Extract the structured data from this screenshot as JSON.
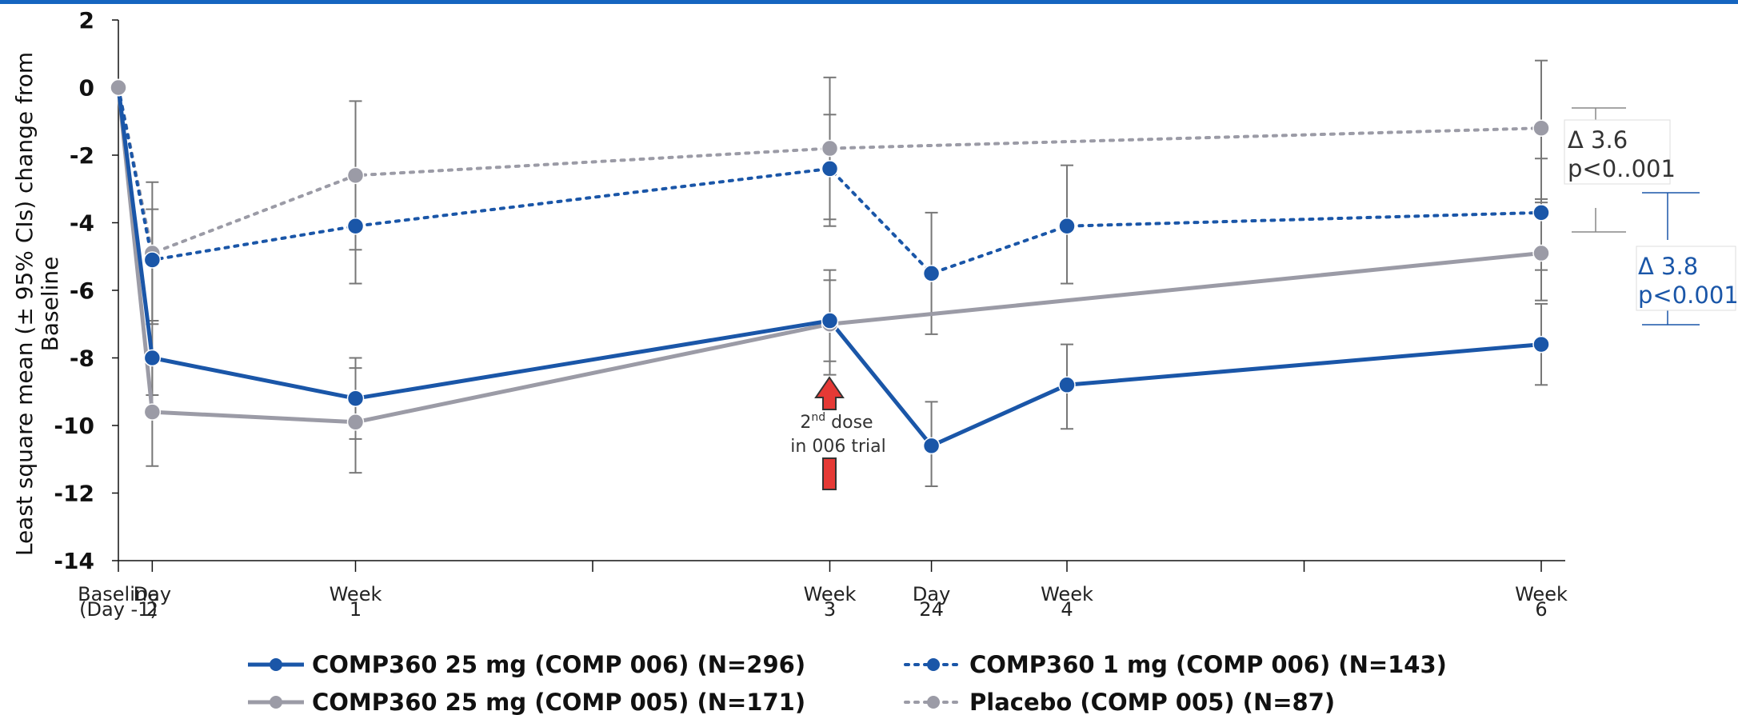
{
  "chart_data": {
    "type": "line",
    "ylabel": "Least square mean (± 95% CIs) change from Baseline",
    "ylabel_lines": [
      "Least square mean (± 95% CIs) change from",
      "Baseline"
    ],
    "ylim": [
      -14,
      2
    ],
    "yticks": [
      2,
      0,
      -2,
      -4,
      -6,
      -8,
      -10,
      -12,
      -14
    ],
    "x_ticks": [
      {
        "x": 0,
        "label": [
          "Baseline",
          "(Day -1)"
        ]
      },
      {
        "x": 1,
        "label": [
          "Day",
          "2"
        ]
      },
      {
        "x": 7,
        "label": [
          "Week",
          "1"
        ]
      },
      {
        "x": 14,
        "label": []
      },
      {
        "x": 21,
        "label": [
          "Week",
          "3"
        ]
      },
      {
        "x": 24,
        "label": [
          "Day",
          "24"
        ]
      },
      {
        "x": 28,
        "label": [
          "Week",
          "4"
        ]
      },
      {
        "x": 35,
        "label": []
      },
      {
        "x": 42,
        "label": [
          "Week",
          "6"
        ]
      }
    ],
    "grid": false,
    "legend_position": "bottom",
    "series": [
      {
        "name": "COMP360 25 mg (COMP 006) (N=296)",
        "color": "#1a56a8",
        "style": "solid",
        "points": [
          {
            "x": 0,
            "y": 0,
            "lo": null,
            "hi": null
          },
          {
            "x": 1,
            "y": -8.0,
            "lo": -9.1,
            "hi": -6.9
          },
          {
            "x": 7,
            "y": -9.2,
            "lo": -10.4,
            "hi": -8.0
          },
          {
            "x": 21,
            "y": -6.9,
            "lo": -8.1,
            "hi": -5.7
          },
          {
            "x": 24,
            "y": -10.6,
            "lo": -11.8,
            "hi": -9.3
          },
          {
            "x": 28,
            "y": -8.8,
            "lo": -10.1,
            "hi": -7.6
          },
          {
            "x": 42,
            "y": -7.6,
            "lo": -8.8,
            "hi": -6.4
          }
        ]
      },
      {
        "name": "COMP360 1 mg (COMP 006) (N=143)",
        "color": "#1a56a8",
        "style": "dotted",
        "points": [
          {
            "x": 0,
            "y": 0,
            "lo": null,
            "hi": null
          },
          {
            "x": 1,
            "y": -5.1,
            "lo": -6.9,
            "hi": -3.6
          },
          {
            "x": 7,
            "y": -4.1,
            "lo": -5.8,
            "hi": -2.5
          },
          {
            "x": 21,
            "y": -2.4,
            "lo": -4.1,
            "hi": -0.8
          },
          {
            "x": 24,
            "y": -5.5,
            "lo": -7.3,
            "hi": -3.7
          },
          {
            "x": 28,
            "y": -4.1,
            "lo": -5.8,
            "hi": -2.3
          },
          {
            "x": 42,
            "y": -3.7,
            "lo": -5.4,
            "hi": -2.1
          }
        ]
      },
      {
        "name": "COMP360 25 mg (COMP 005) (N=171)",
        "color": "#9b9ba6",
        "style": "solid",
        "points": [
          {
            "x": 0,
            "y": 0,
            "lo": null,
            "hi": null
          },
          {
            "x": 1,
            "y": -9.6,
            "lo": -11.2,
            "hi": -8.1
          },
          {
            "x": 7,
            "y": -9.9,
            "lo": -11.4,
            "hi": -8.3
          },
          {
            "x": 21,
            "y": -7.0,
            "lo": -8.5,
            "hi": -5.4
          },
          {
            "x": 42,
            "y": -4.9,
            "lo": -6.3,
            "hi": -3.4
          }
        ]
      },
      {
        "name": "Placebo (COMP 005) (N=87)",
        "color": "#9b9ba6",
        "style": "dotted",
        "points": [
          {
            "x": 0,
            "y": 0,
            "lo": null,
            "hi": null
          },
          {
            "x": 1,
            "y": -4.9,
            "lo": -7.0,
            "hi": -2.8
          },
          {
            "x": 7,
            "y": -2.6,
            "lo": -4.8,
            "hi": -0.4
          },
          {
            "x": 21,
            "y": -1.8,
            "lo": -3.9,
            "hi": 0.3
          },
          {
            "x": 42,
            "y": -1.2,
            "lo": -3.3,
            "hi": 0.8
          }
        ]
      }
    ],
    "annotations": {
      "dose_note": [
        "2nd dose",
        "in 006 trial"
      ],
      "delta_placebo": {
        "delta": "Δ 3.6",
        "p": "p<0..001",
        "color": "#333333"
      },
      "delta_1mg": {
        "delta": "Δ 3.8",
        "p": "p<0.001",
        "color": "#1a56a8"
      }
    }
  },
  "colors": {
    "header_bar": "#1565c0",
    "arrow": "#e53935"
  }
}
